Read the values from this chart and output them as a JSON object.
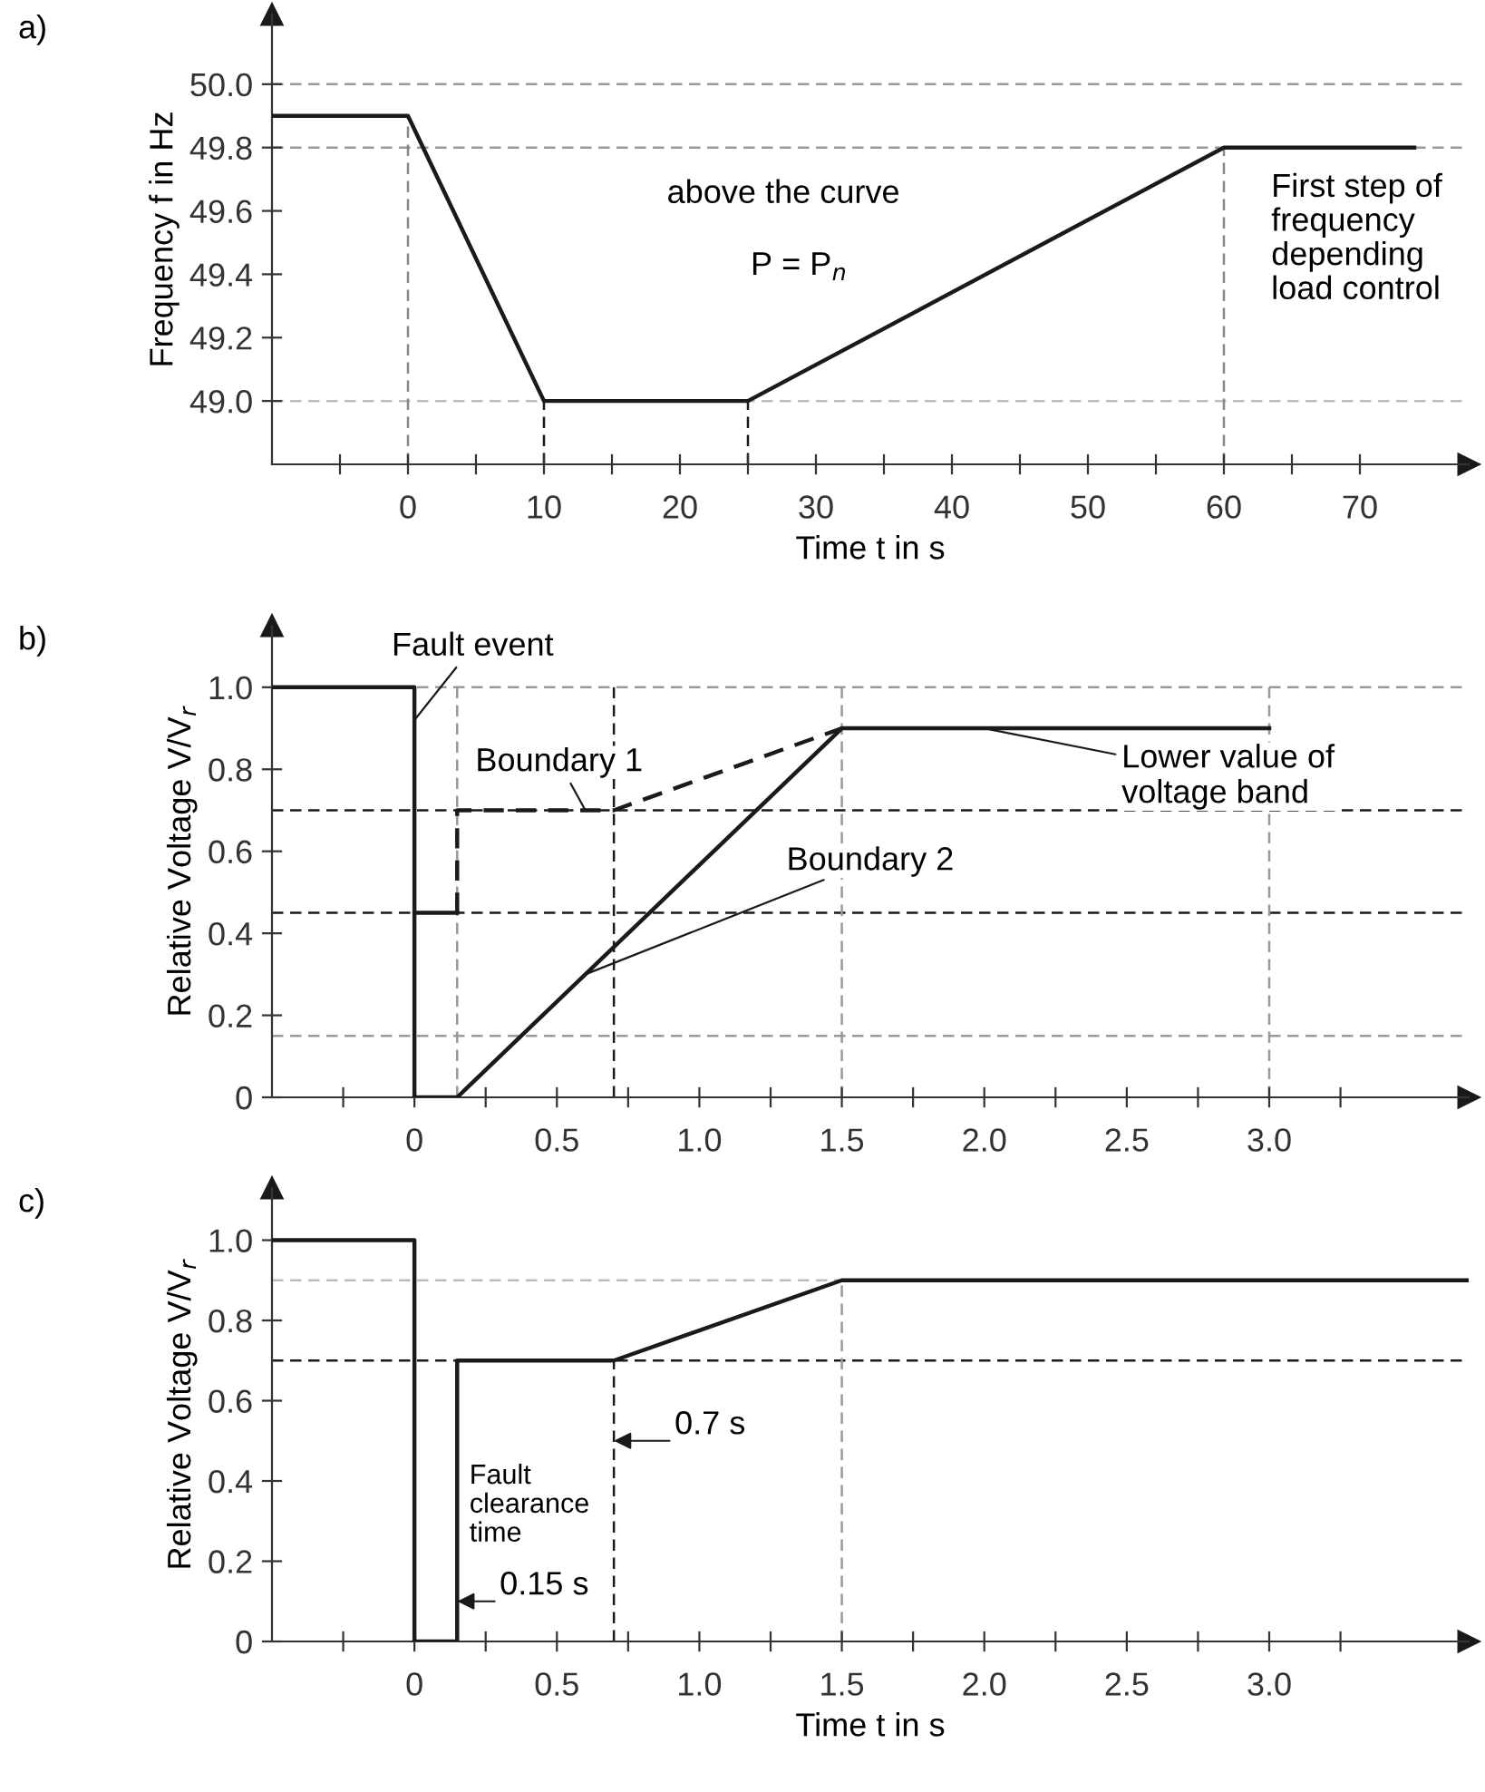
{
  "chart_data": [
    {
      "type": "line",
      "title": "a)",
      "xlabel": "Time t in s",
      "ylabel": "Frequency f in Hz",
      "xlim": [
        -10,
        78
      ],
      "ylim": [
        48.8,
        50.22
      ],
      "xticks": [
        {
          "value": -5,
          "label": null
        },
        0,
        {
          "value": 5,
          "label": null
        },
        10,
        {
          "value": 15,
          "label": null
        },
        20,
        {
          "value": 25,
          "label": null
        },
        30,
        {
          "value": 35,
          "label": null
        },
        40,
        {
          "value": 45,
          "label": null
        },
        50,
        {
          "value": 55,
          "label": null
        },
        60,
        {
          "value": 65,
          "label": null
        },
        70
      ],
      "yticks": [
        {
          "value": 49.0,
          "label": "49.0"
        },
        49.2,
        49.4,
        49.6,
        49.8,
        {
          "value": 50.0,
          "label": "50.0"
        }
      ],
      "series": [
        {
          "color": "#1a1a1a",
          "line_style": "solid",
          "x": [
            -10,
            0,
            10,
            25,
            60,
            74
          ],
          "values": [
            49.9,
            49.9,
            49.0,
            49.0,
            49.8,
            49.8
          ]
        }
      ],
      "ref_lines": [
        {
          "axis": "y",
          "value": 50.0,
          "color": "#999999",
          "line_style": "dashed"
        },
        {
          "axis": "y",
          "value": 49.8,
          "color": "#999999",
          "line_style": "dashed"
        },
        {
          "axis": "y",
          "value": 49.0,
          "color": "#bbbbbb",
          "line_style": "dashed"
        },
        {
          "axis": "x",
          "value": 0,
          "color": "#888888",
          "line_style": "dashed"
        },
        {
          "axis": "x",
          "value": 10,
          "color": "#1a1a1a",
          "line_style": "dashed"
        },
        {
          "axis": "x",
          "value": 25,
          "color": "#1a1a1a",
          "line_style": "dashed"
        },
        {
          "axis": "x",
          "value": 60,
          "color": "#888888",
          "line_style": "dashed"
        }
      ],
      "annotations": [
        "above the curve",
        "P = P$_{n}$",
        "First step of\nfrequency\ndepending\nload control"
      ],
      "grid": false
    },
    {
      "type": "line",
      "title": "b)",
      "ylabel": "Relative Voltage V/V$_{r}$",
      "xlim": [
        -0.5,
        3.7
      ],
      "ylim": [
        0,
        1.15
      ],
      "xticks": [
        {
          "value": -0.25,
          "label": null
        },
        0,
        {
          "value": 0.25,
          "label": null
        },
        0.5,
        {
          "value": 0.75,
          "label": null
        },
        {
          "value": 1.0,
          "label": "1.0"
        },
        {
          "value": 1.25,
          "label": null
        },
        1.5,
        {
          "value": 1.75,
          "label": null
        },
        {
          "value": 2.0,
          "label": "2.0"
        },
        {
          "value": 2.25,
          "label": null
        },
        2.5,
        {
          "value": 2.75,
          "label": null
        },
        {
          "value": 3.0,
          "label": "3.0"
        },
        {
          "value": 3.25,
          "label": null
        }
      ],
      "yticks": [
        0,
        0.2,
        0.4,
        0.6,
        0.8,
        {
          "value": 1.0,
          "label": "1.0"
        }
      ],
      "series": [
        {
          "color": "#1a1a1a",
          "line_style": "solid",
          "x": [
            -0.5,
            0,
            0,
            0.15,
            1.5,
            3.0
          ],
          "values": [
            1.0,
            1.0,
            0,
            0,
            0.9,
            0.9
          ]
        },
        {
          "color": "#1a1a1a",
          "line_style": "dashed",
          "x": [
            0.15,
            0.15,
            0.7,
            1.5
          ],
          "values": [
            0.45,
            0.7,
            0.7,
            0.9
          ]
        },
        {
          "color": "#1a1a1a",
          "line_style": "solid",
          "x": [
            0,
            0.15
          ],
          "values": [
            0.45,
            0.45
          ]
        }
      ],
      "ref_lines": [
        {
          "axis": "y",
          "value": 1.0,
          "color": "#999999",
          "line_style": "dashed"
        },
        {
          "axis": "y",
          "value": 0.7,
          "color": "#1a1a1a",
          "line_style": "dashed"
        },
        {
          "axis": "y",
          "value": 0.45,
          "color": "#1a1a1a",
          "line_style": "dashed"
        },
        {
          "axis": "y",
          "value": 0.15,
          "color": "#999999",
          "line_style": "dashed"
        },
        {
          "axis": "x",
          "value": 0.15,
          "color": "#999999",
          "line_style": "dashed"
        },
        {
          "axis": "x",
          "value": 0.7,
          "color": "#1a1a1a",
          "line_style": "dashed"
        },
        {
          "axis": "x",
          "value": 1.5,
          "color": "#999999",
          "line_style": "dashed"
        },
        {
          "axis": "x",
          "value": 3.0,
          "color": "#999999",
          "line_style": "dashed"
        }
      ],
      "annotations": [
        {
          "text": "Fault event",
          "x": 0,
          "y": 0.92
        },
        {
          "text": "Boundary 1",
          "x": 0.6,
          "y": 0.7
        },
        {
          "text": "Boundary 2",
          "x": 0.6,
          "y": 0.3
        },
        {
          "text": "Lower value of\nvoltage band",
          "x": 2.0,
          "y": 0.9
        }
      ],
      "grid": false
    },
    {
      "type": "line",
      "title": "c)",
      "xlabel": "Time t in s",
      "ylabel": "Relative Voltage V/V$_{r}$",
      "xlim": [
        -0.5,
        3.7
      ],
      "ylim": [
        0,
        1.13
      ],
      "xticks": [
        {
          "value": -0.25,
          "label": null
        },
        0,
        {
          "value": 0.25,
          "label": null
        },
        0.5,
        {
          "value": 0.75,
          "label": null
        },
        {
          "value": 1.0,
          "label": "1.0"
        },
        {
          "value": 1.25,
          "label": null
        },
        1.5,
        {
          "value": 1.75,
          "label": null
        },
        {
          "value": 2.0,
          "label": "2.0"
        },
        {
          "value": 2.25,
          "label": null
        },
        2.5,
        {
          "value": 2.75,
          "label": null
        },
        {
          "value": 3.0,
          "label": "3.0"
        },
        {
          "value": 3.25,
          "label": null
        }
      ],
      "yticks": [
        0,
        0.2,
        0.4,
        0.6,
        0.8,
        {
          "value": 1.0,
          "label": "1.0"
        }
      ],
      "series": [
        {
          "color": "#1a1a1a",
          "line_style": "solid",
          "x": [
            -0.5,
            0,
            0,
            0.15,
            0.15,
            0.7,
            1.5,
            3.7
          ],
          "values": [
            1.0,
            1.0,
            0,
            0,
            0.7,
            0.7,
            0.9,
            0.9
          ]
        }
      ],
      "ref_lines": [
        {
          "axis": "y",
          "value": 0.9,
          "color": "#bbbbbb",
          "line_style": "dashed"
        },
        {
          "axis": "y",
          "value": 0.7,
          "color": "#1a1a1a",
          "line_style": "dashed"
        },
        {
          "axis": "x",
          "value": 0.7,
          "color": "#1a1a1a",
          "line_style": "dashed"
        },
        {
          "axis": "x",
          "value": 1.5,
          "color": "#999999",
          "line_style": "dashed"
        }
      ],
      "annotations": [
        {
          "text": "0.7 s",
          "x": 0.7,
          "y": 0.5
        },
        {
          "text": "0.15 s",
          "x": 0.15,
          "y": 0.1
        },
        "Fault\nclearance\ntime"
      ],
      "grid": false
    }
  ]
}
